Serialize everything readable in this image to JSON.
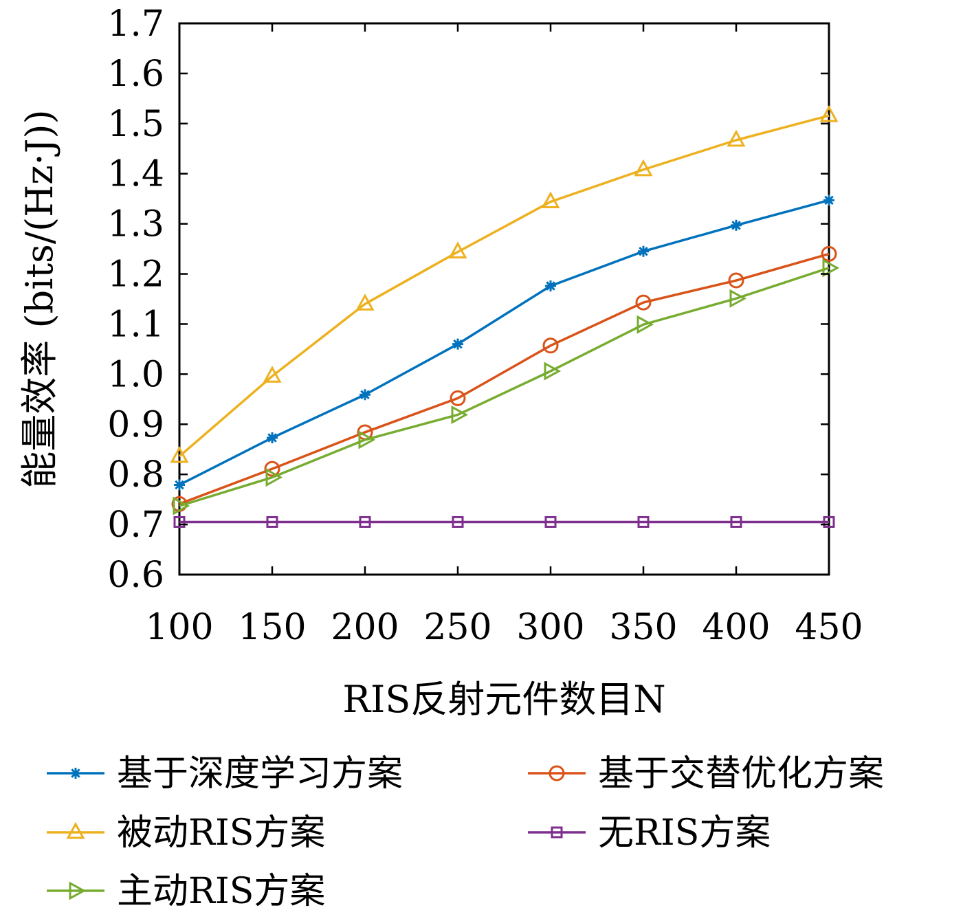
{
  "chart_data": {
    "type": "line",
    "title": "",
    "xlabel": "RIS反射元件数目N",
    "ylabel": "能量效率 (bits/(Hz·J))",
    "x": [
      100,
      150,
      200,
      250,
      300,
      350,
      400,
      450
    ],
    "xticks": [
      "100",
      "150",
      "200",
      "250",
      "300",
      "350",
      "400",
      "450"
    ],
    "yticks": [
      "0.6",
      "0.7",
      "0.8",
      "0.9",
      "1.0",
      "1.1",
      "1.2",
      "1.3",
      "1.4",
      "1.5",
      "1.6",
      "1.7"
    ],
    "xlim": [
      100,
      450
    ],
    "ylim": [
      0.6,
      1.7
    ],
    "grid": false,
    "legend_position": "bottom",
    "series": [
      {
        "name": "基于深度学习方案",
        "color": "#0072BD",
        "marker": "asterisk",
        "values": [
          0.779,
          0.873,
          0.959,
          1.06,
          1.176,
          1.245,
          1.297,
          1.347
        ]
      },
      {
        "name": "基于交替优化方案",
        "color": "#D95319",
        "marker": "circle",
        "values": [
          0.741,
          0.811,
          0.884,
          0.952,
          1.057,
          1.143,
          1.187,
          1.24
        ]
      },
      {
        "name": "被动RIS方案",
        "color": "#EDB120",
        "marker": "triangle-up",
        "values": [
          0.836,
          0.996,
          1.14,
          1.244,
          1.344,
          1.408,
          1.467,
          1.516
        ]
      },
      {
        "name": "无RIS方案",
        "color": "#7E2F8E",
        "marker": "square",
        "values": [
          0.705,
          0.705,
          0.705,
          0.705,
          0.705,
          0.705,
          0.705,
          0.705
        ]
      },
      {
        "name": "主动RIS方案",
        "color": "#77AC30",
        "marker": "triangle-right",
        "values": [
          0.737,
          0.794,
          0.869,
          0.919,
          1.006,
          1.099,
          1.151,
          1.212
        ]
      }
    ]
  }
}
